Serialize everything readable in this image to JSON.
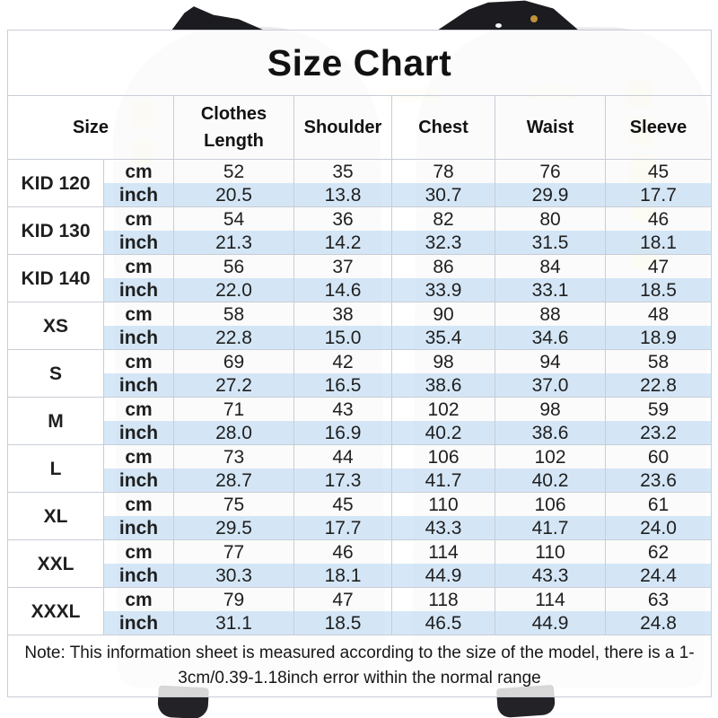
{
  "table": {
    "title": "Size Chart",
    "size_header": "Size",
    "columns": [
      "Clothes Length",
      "Shoulder",
      "Chest",
      "Waist",
      "Sleeve"
    ],
    "unit_labels": [
      "cm",
      "inch"
    ],
    "groups": [
      {
        "size": "KID 120",
        "cm": [
          "52",
          "35",
          "78",
          "76",
          "45"
        ],
        "inch": [
          "20.5",
          "13.8",
          "30.7",
          "29.9",
          "17.7"
        ]
      },
      {
        "size": "KID 130",
        "cm": [
          "54",
          "36",
          "82",
          "80",
          "46"
        ],
        "inch": [
          "21.3",
          "14.2",
          "32.3",
          "31.5",
          "18.1"
        ]
      },
      {
        "size": "KID 140",
        "cm": [
          "56",
          "37",
          "86",
          "84",
          "47"
        ],
        "inch": [
          "22.0",
          "14.6",
          "33.9",
          "33.1",
          "18.5"
        ]
      },
      {
        "size": "XS",
        "cm": [
          "58",
          "38",
          "90",
          "88",
          "48"
        ],
        "inch": [
          "22.8",
          "15.0",
          "35.4",
          "34.6",
          "18.9"
        ]
      },
      {
        "size": "S",
        "cm": [
          "69",
          "42",
          "98",
          "94",
          "58"
        ],
        "inch": [
          "27.2",
          "16.5",
          "38.6",
          "37.0",
          "22.8"
        ]
      },
      {
        "size": "M",
        "cm": [
          "71",
          "43",
          "102",
          "98",
          "59"
        ],
        "inch": [
          "28.0",
          "16.9",
          "40.2",
          "38.6",
          "23.2"
        ]
      },
      {
        "size": "L",
        "cm": [
          "73",
          "44",
          "106",
          "102",
          "60"
        ],
        "inch": [
          "28.7",
          "17.3",
          "41.7",
          "40.2",
          "23.6"
        ]
      },
      {
        "size": "XL",
        "cm": [
          "75",
          "45",
          "110",
          "106",
          "61"
        ],
        "inch": [
          "29.5",
          "17.7",
          "43.3",
          "41.7",
          "24.0"
        ]
      },
      {
        "size": "XXL",
        "cm": [
          "77",
          "46",
          "114",
          "110",
          "62"
        ],
        "inch": [
          "30.3",
          "18.1",
          "44.9",
          "43.3",
          "24.4"
        ]
      },
      {
        "size": "XXXL",
        "cm": [
          "79",
          "47",
          "118",
          "114",
          "63"
        ],
        "inch": [
          "31.1",
          "18.5",
          "46.5",
          "44.9",
          "24.8"
        ]
      }
    ],
    "note": "Note: This information sheet is measured according to the size of the model, there is a 1-3cm/0.39-1.18inch error within the normal range"
  },
  "colors": {
    "inch_row_blue": "#d2e5f6",
    "border": "#c8cdd6",
    "text": "#1b1b1b",
    "background_garment": "#ebebee",
    "garment_black": "#1c1c20",
    "button_gold": "#c0933a"
  }
}
